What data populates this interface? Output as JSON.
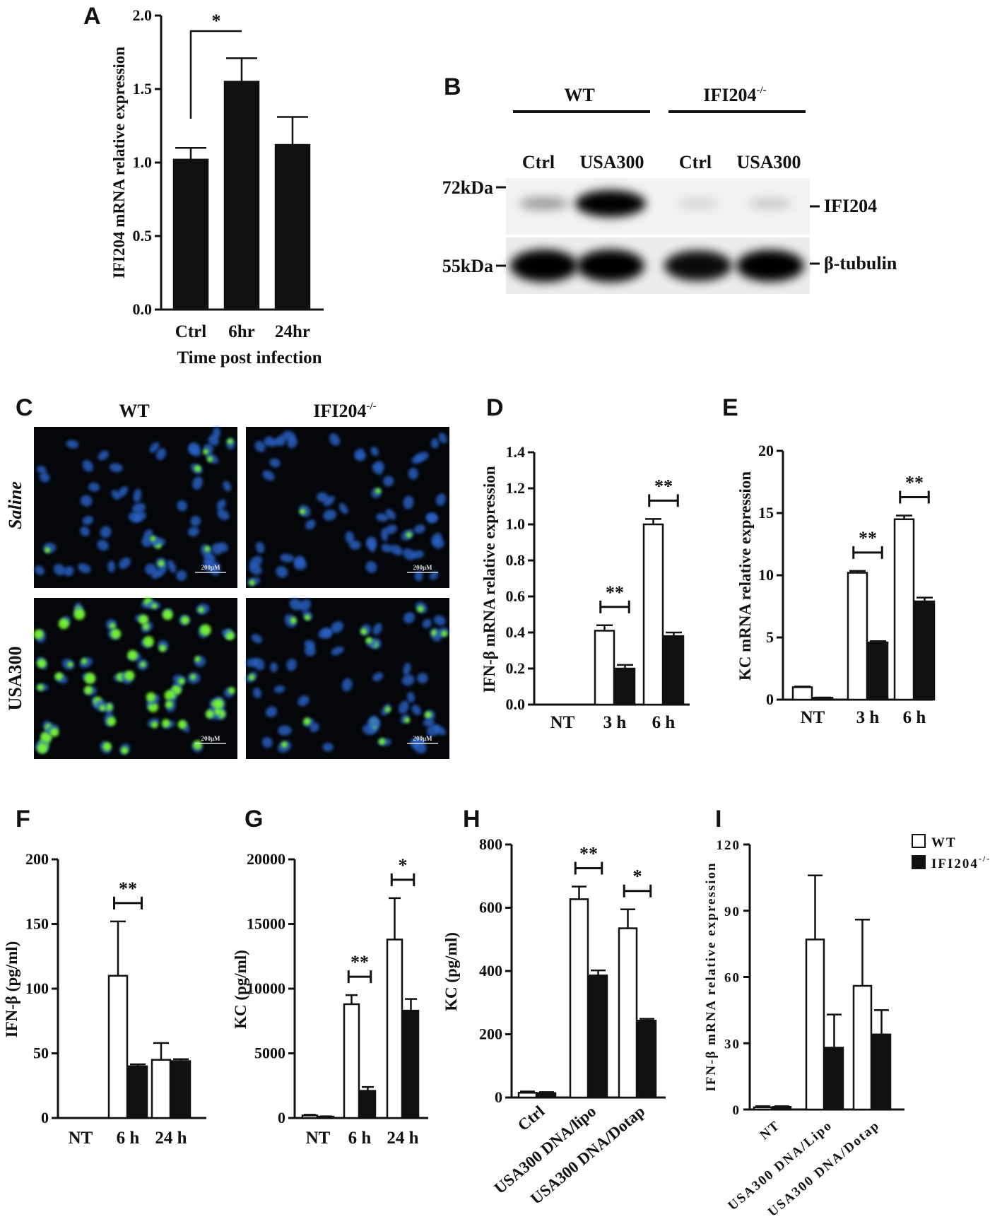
{
  "colors": {
    "wt_fill": "#ffffff",
    "ko_fill": "#111111",
    "axis": "#111111",
    "micro_bg": "#04060a",
    "dapi": "#2b63c8",
    "stain": "#7cff2a"
  },
  "panels": {
    "A": {
      "letter": "A"
    },
    "B": {
      "letter": "B",
      "groups": [
        "WT",
        "IFI204"
      ],
      "group_sup": "-/-",
      "lanes": [
        "Ctrl",
        "USA300",
        "Ctrl",
        "USA300"
      ],
      "markers": [
        "72kDa",
        "55kDa"
      ],
      "bands": [
        "IFI204",
        "β-tubulin"
      ],
      "ifi204_intensity": [
        0.25,
        1.0,
        0.03,
        0.08
      ],
      "tubulin_intensity": [
        1.0,
        1.0,
        0.85,
        0.95
      ]
    },
    "C": {
      "letter": "C",
      "columns": [
        "WT",
        "IFI204"
      ],
      "column_sup": "-/-",
      "rows": [
        "Saline",
        "USA300"
      ],
      "scale_bar": "200μM"
    },
    "D": {
      "letter": "D"
    },
    "E": {
      "letter": "E"
    },
    "F": {
      "letter": "F"
    },
    "G": {
      "letter": "G"
    },
    "H": {
      "letter": "H"
    },
    "I": {
      "letter": "I"
    }
  },
  "legend": {
    "wt": "WT",
    "ko": "IFI204",
    "ko_sup": "-/-"
  },
  "chart_data": [
    {
      "id": "A",
      "type": "bar",
      "categories": [
        "Ctrl",
        "6hr",
        "24hr"
      ],
      "series": [
        {
          "values": [
            1.02,
            1.55,
            1.12
          ],
          "errors": [
            0.08,
            0.16,
            0.19
          ]
        }
      ],
      "ylim": [
        0,
        2.0
      ],
      "yticks": [
        "0.0",
        "0.5",
        "1.0",
        "1.5",
        "2.0"
      ],
      "ylabel": "IFI204 mRNA relative expression",
      "xlabel": "Time post infection",
      "significance": [
        {
          "from": "Ctrl",
          "to": "6hr",
          "label": "*"
        }
      ]
    },
    {
      "id": "D",
      "type": "bar",
      "categories": [
        "NT",
        "3 h",
        "6 h"
      ],
      "series": [
        {
          "name": "WT",
          "values": [
            0.0,
            0.41,
            1.0
          ],
          "errors": [
            0,
            0.03,
            0.03
          ]
        },
        {
          "name": "IFI204-/-",
          "values": [
            0.0,
            0.2,
            0.38
          ],
          "errors": [
            0,
            0.02,
            0.02
          ]
        }
      ],
      "ylim": [
        0,
        1.4
      ],
      "yticks": [
        "0.0",
        "0.2",
        "0.4",
        "0.6",
        "0.8",
        "1.0",
        "1.2",
        "1.4"
      ],
      "ylabel": "IFN-β mRNA relative expression",
      "significance": [
        {
          "category": "3 h",
          "label": "**"
        },
        {
          "category": "6 h",
          "label": "**"
        }
      ]
    },
    {
      "id": "E",
      "type": "bar",
      "categories": [
        "NT",
        "3 h",
        "6 h"
      ],
      "series": [
        {
          "name": "WT",
          "values": [
            1.0,
            10.2,
            14.5
          ],
          "errors": [
            0.05,
            0.15,
            0.3
          ]
        },
        {
          "name": "IFI204-/-",
          "values": [
            0.15,
            4.6,
            7.9
          ],
          "errors": [
            0.02,
            0.1,
            0.3
          ]
        }
      ],
      "ylim": [
        0,
        20
      ],
      "yticks": [
        "0",
        "5",
        "10",
        "15",
        "20"
      ],
      "ylabel": "KC mRNA relative expression",
      "significance": [
        {
          "category": "3 h",
          "label": "**"
        },
        {
          "category": "6 h",
          "label": "**"
        }
      ]
    },
    {
      "id": "F",
      "type": "bar",
      "categories": [
        "NT",
        "6 h",
        "24 h"
      ],
      "series": [
        {
          "name": "WT",
          "values": [
            0,
            110,
            45
          ],
          "errors": [
            0,
            42,
            13
          ]
        },
        {
          "name": "IFI204-/-",
          "values": [
            0,
            40,
            44
          ],
          "errors": [
            0,
            1.5,
            1.5
          ]
        }
      ],
      "ylim": [
        0,
        200
      ],
      "yticks": [
        "0",
        "50",
        "100",
        "150",
        "200"
      ],
      "ylabel": "IFN-β (pg/ml)",
      "significance": [
        {
          "category": "6 h",
          "label": "**"
        }
      ]
    },
    {
      "id": "G",
      "type": "bar",
      "categories": [
        "NT",
        "6 h",
        "24 h"
      ],
      "series": [
        {
          "name": "WT",
          "values": [
            200,
            8800,
            13800
          ],
          "errors": [
            50,
            700,
            3200
          ]
        },
        {
          "name": "IFI204-/-",
          "values": [
            100,
            2100,
            8300
          ],
          "errors": [
            30,
            300,
            900
          ]
        }
      ],
      "ylim": [
        0,
        20000
      ],
      "yticks": [
        "0",
        "5000",
        "10000",
        "15000",
        "20000"
      ],
      "ylabel": "KC (pg/ml)",
      "significance": [
        {
          "category": "6 h",
          "label": "**"
        },
        {
          "category": "24 h",
          "label": "*"
        }
      ]
    },
    {
      "id": "H",
      "type": "bar",
      "categories": [
        "Ctrl",
        "USA300 DNA/lipo",
        "USA300 DNA/Dotap"
      ],
      "series": [
        {
          "name": "WT",
          "values": [
            15,
            627,
            535
          ],
          "errors": [
            4,
            40,
            60
          ]
        },
        {
          "name": "IFI204-/-",
          "values": [
            14,
            386,
            243
          ],
          "errors": [
            3,
            16,
            6
          ]
        }
      ],
      "ylim": [
        0,
        800
      ],
      "yticks": [
        "0",
        "200",
        "400",
        "600",
        "800"
      ],
      "ylabel": "KC (pg/ml)",
      "significance": [
        {
          "category": "USA300 DNA/lipo",
          "label": "**"
        },
        {
          "category": "USA300 DNA/Dotap",
          "label": "*"
        }
      ]
    },
    {
      "id": "I",
      "type": "bar",
      "categories": [
        "NT",
        "USA300 DNA/Lipo",
        "USA300 DNA/Dotap"
      ],
      "series": [
        {
          "name": "WT",
          "values": [
            1,
            77,
            56
          ],
          "errors": [
            0.5,
            29,
            30
          ]
        },
        {
          "name": "IFI204-/-",
          "values": [
            1.2,
            28,
            34
          ],
          "errors": [
            0.3,
            15,
            11
          ]
        }
      ],
      "ylim": [
        0,
        120
      ],
      "yticks": [
        "0",
        "30",
        "60",
        "90",
        "120"
      ],
      "ylabel": "IFN-β mRNA relative expression"
    }
  ]
}
